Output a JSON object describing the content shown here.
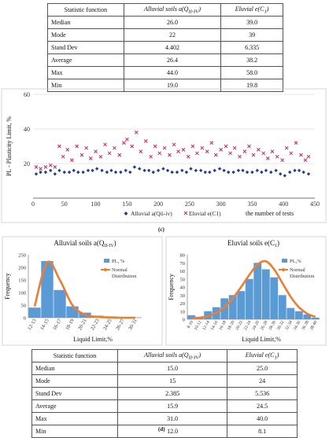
{
  "table_top": {
    "headers": [
      "Statistic function",
      "Alluvial soils a(Q",
      "II-IV",
      ")",
      "Eluvial e(C",
      "1",
      ")"
    ],
    "rows": [
      [
        "Median",
        "26.0",
        "39.0"
      ],
      [
        "Mode",
        "22",
        "39"
      ],
      [
        "Stand Dev",
        "4.402",
        "6.335"
      ],
      [
        "Average",
        "26.4",
        "38.2"
      ],
      [
        "Max",
        "44.0",
        "58.0"
      ],
      [
        "Min",
        "19.0",
        "19.8"
      ]
    ]
  },
  "caption_c": "(c)",
  "caption_d": "(d)",
  "table_bottom": {
    "headers": [
      "Statistic function",
      "Alluvial soils a(Q",
      "II-IV",
      ")",
      "Eluvial e(C",
      "1",
      ")"
    ],
    "rows": [
      [
        "Median",
        "15.0",
        "25.0"
      ],
      [
        "Mode",
        "15",
        "24"
      ],
      [
        "Stand Dev",
        "2.385",
        "5.536"
      ],
      [
        "Average",
        "15.9",
        "24.5"
      ],
      [
        "Max",
        "31.0",
        "40.0"
      ],
      [
        "Min",
        "12.0",
        "8.1"
      ]
    ]
  },
  "chart_data": [
    {
      "type": "scatter",
      "ylabel": "PL - Plasticity Limit, %",
      "xlabel": "the number of tests",
      "xlim": [
        0,
        450
      ],
      "ylim": [
        0,
        60
      ],
      "x_ticks": [
        0,
        50,
        100,
        150,
        200,
        250,
        300,
        350,
        400,
        450
      ],
      "y_ticks": [
        20,
        40,
        60
      ],
      "grid": true,
      "legend_position": "bottom",
      "series": [
        {
          "name": "Alluvial a(Qii-iv)",
          "marker": "diamond",
          "color": "#1f3f8c",
          "x": [
            5,
            12,
            20,
            28,
            35,
            42,
            50,
            58,
            65,
            72,
            80,
            88,
            95,
            102,
            110,
            118,
            125,
            132,
            140,
            148,
            155,
            162,
            170,
            178,
            185,
            192,
            200,
            208,
            215,
            222,
            230,
            238,
            245,
            252,
            260,
            268,
            275,
            282,
            290,
            298,
            305,
            312,
            320,
            328,
            335,
            342,
            350,
            358,
            365,
            372,
            380,
            388,
            395,
            402,
            410,
            418,
            425,
            432,
            440
          ],
          "y": [
            14,
            15,
            15,
            16,
            14,
            16,
            15,
            15,
            16,
            15,
            15,
            16,
            16,
            17,
            16,
            15,
            16,
            15,
            15,
            16,
            15,
            18,
            17,
            16,
            16,
            15,
            16,
            17,
            16,
            15,
            15,
            16,
            15,
            17,
            16,
            16,
            15,
            15,
            16,
            17,
            16,
            15,
            15,
            16,
            16,
            15,
            15,
            16,
            15,
            16,
            15,
            16,
            14,
            13,
            15,
            16,
            16,
            15,
            14
          ]
        },
        {
          "name": "Eluvial e(C1)",
          "marker": "x",
          "color": "#c8285a",
          "x": [
            5,
            12,
            20,
            28,
            35,
            42,
            48,
            55,
            62,
            70,
            78,
            85,
            92,
            100,
            108,
            115,
            122,
            130,
            138,
            145,
            150,
            158,
            165,
            172,
            180,
            188,
            195,
            202,
            210,
            218,
            225,
            232,
            240,
            248,
            255,
            262,
            270,
            278,
            285,
            292,
            300,
            308,
            315,
            322,
            330,
            338,
            345,
            352,
            360,
            368,
            375,
            382,
            390,
            398,
            405,
            412,
            420,
            428,
            435,
            440
          ],
          "y": [
            18,
            17,
            18,
            19,
            18,
            30,
            24,
            28,
            22,
            30,
            25,
            29,
            23,
            27,
            24,
            31,
            26,
            29,
            25,
            32,
            34,
            30,
            38,
            27,
            33,
            24,
            30,
            26,
            29,
            25,
            31,
            27,
            28,
            24,
            30,
            26,
            29,
            27,
            32,
            25,
            28,
            30,
            26,
            29,
            24,
            27,
            30,
            25,
            28,
            26,
            23,
            27,
            24,
            22,
            29,
            26,
            32,
            25,
            22,
            24
          ]
        }
      ]
    },
    {
      "type": "bar",
      "title": "Alluvial soils a(Q",
      "title_sub": "II-IV",
      "title_end": ")",
      "xlabel": "Liquid Limit,%",
      "ylabel": "Frequency",
      "categories": [
        "12-13",
        "14-15",
        "16-17",
        "18-19",
        "20-21",
        "22-23",
        "24-25",
        "26-27",
        "30-31"
      ],
      "values": [
        40,
        225,
        110,
        45,
        20,
        8,
        5,
        2,
        1
      ],
      "ylim": [
        0,
        250
      ],
      "y_ticks": [
        0,
        50,
        100,
        150,
        200,
        250
      ],
      "normal_curve": [
        45,
        220,
        150,
        50,
        12,
        3,
        1,
        0,
        0
      ],
      "series": [
        {
          "name": "PL, %",
          "color": "#5b9bd5"
        },
        {
          "name": "Normal Distribution",
          "color": "#ed7d31"
        }
      ],
      "legend_position": "top-right"
    },
    {
      "type": "bar",
      "title": "Eluvial soils e(C",
      "title_sub": "1",
      "title_end": ")",
      "xlabel": "Liquid Limit,%",
      "ylabel": "Frequency",
      "categories": [
        "8-10",
        "10-12",
        "12-14",
        "14-16",
        "16-18",
        "18-20",
        "20-22",
        "22-24",
        "24-26",
        "26-28",
        "28-30",
        "30-32",
        "32-34",
        "34-36",
        "36-38",
        "38-40"
      ],
      "values": [
        5,
        3,
        10,
        15,
        26,
        30,
        35,
        50,
        70,
        62,
        52,
        30,
        14,
        10,
        6,
        2
      ],
      "ylim": [
        0,
        80
      ],
      "y_ticks": [
        0,
        10,
        20,
        30,
        40,
        50,
        60,
        70,
        80
      ],
      "normal_curve": [
        1,
        2,
        4,
        8,
        15,
        26,
        40,
        55,
        68,
        72,
        62,
        45,
        28,
        15,
        7,
        3
      ],
      "series": [
        {
          "name": "PL,%",
          "color": "#5b9bd5"
        },
        {
          "name": "Normal Distribution",
          "color": "#ed7d31"
        }
      ],
      "legend_position": "top-right"
    }
  ]
}
